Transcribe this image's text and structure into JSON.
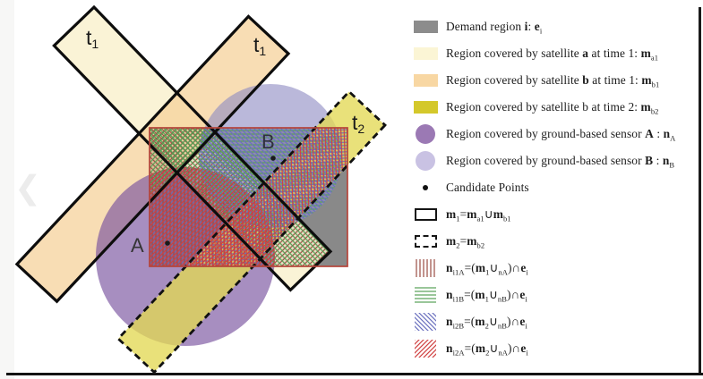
{
  "figure": {
    "name": "satellite-and-ground-sensor-coverage-diagram"
  },
  "chrome": {
    "prev_arrow": "❮"
  },
  "diagram": {
    "labels": {
      "band_a_t1": {
        "main": "t",
        "sub": "1"
      },
      "band_b_t1": {
        "main": "t",
        "sub": "1"
      },
      "band_b_t2": {
        "main": "t",
        "sub": "2"
      },
      "sensor_a": "A",
      "sensor_b": "B"
    },
    "colors": {
      "demand_gray": "#898989",
      "satellite_a_cream": "#faf2d0",
      "satellite_b_peach": "#f6d29b",
      "satellite_b2_yellow": "#e3d955",
      "sensor_a_purple": "#7a54a0",
      "sensor_b_lavender": "#8f8cc4",
      "hatch_vertical_red": "#9a4b42",
      "hatch_horizontal_green": "#55a055",
      "hatch_diagonal_blue": "#6a6fbe",
      "hatch_diagonal_red": "#d04040",
      "demand_outline_red": "#b5443a",
      "band_outline_black": "#0d0d0d"
    }
  },
  "legend": {
    "items": [
      {
        "id": "demand-region",
        "swatch": {
          "type": "square",
          "name": "demand-region-swatch",
          "color": "#8c8c8c"
        },
        "label_html": "Demand region <b>i</b>: <b>e</b><sub>i</sub>"
      },
      {
        "id": "satellite-a-time1",
        "swatch": {
          "type": "square",
          "name": "satellite-a-time1-swatch",
          "color": "#fbf5d5"
        },
        "label_html": "Region covered by satellite <b>a</b> at time 1: <b>m</b><sub>a1</sub>"
      },
      {
        "id": "satellite-b-time1",
        "swatch": {
          "type": "square",
          "name": "satellite-b-time1-swatch",
          "color": "#f8d7a3"
        },
        "label_html": "Region covered by satellite <b>b</b> at time 1: <b>m</b><sub>b1</sub>"
      },
      {
        "id": "satellite-b-time2",
        "swatch": {
          "type": "square",
          "name": "satellite-b-time2-swatch",
          "color": "#d4c82b"
        },
        "label_html": "Region covered by satellite b at time 2: <b>m</b><sub>b2</sub>"
      },
      {
        "id": "sensor-a",
        "swatch": {
          "type": "circle",
          "name": "sensor-a-swatch",
          "color": "#9b79b4"
        },
        "label_html": "Region covered by ground-based sensor <b>A</b> : <b>n</b><sub>A</sub>"
      },
      {
        "id": "sensor-b",
        "swatch": {
          "type": "circle",
          "name": "sensor-b-swatch",
          "color": "#c9c2e3"
        },
        "label_html": "Region covered by ground-based sensor <b>B</b> : <b>n</b><sub>B</sub>"
      },
      {
        "id": "candidate-points",
        "swatch": {
          "type": "dot",
          "name": "candidate-point-swatch",
          "color": "#111111"
        },
        "label_html": "Candidate Points"
      },
      {
        "id": "m1-union",
        "swatch": {
          "type": "rect-outline",
          "name": "m1-solid-outline-swatch"
        },
        "label_html": "<b>m</b><sub>1</sub>=<b>m</b><sub>a1</sub>∪<b>m</b><sub>b1</sub>"
      },
      {
        "id": "m2",
        "swatch": {
          "type": "rect-dashed",
          "name": "m2-dashed-outline-swatch"
        },
        "label_html": "<b>m</b><sub>2</sub>=<b>m</b><sub>b2</sub>"
      },
      {
        "id": "n-i1A",
        "swatch": {
          "type": "hatch",
          "name": "ni1a-vertical-hatch-swatch",
          "pattern": "patV"
        },
        "label_html": "<b>n</b><sub>i1A</sub>=(<b>m</b><sub>1</sub>∪<sub>nA</sub>)∩<b>e</b><sub>i</sub>"
      },
      {
        "id": "n-i1B",
        "swatch": {
          "type": "hatch",
          "name": "ni1b-horizontal-hatch-swatch",
          "pattern": "patH"
        },
        "label_html": "<b>n</b><sub>i1B</sub>=(<b>m</b><sub>1</sub>∪<sub>nB</sub>)∩<b>e</b><sub>i</sub>"
      },
      {
        "id": "n-i2B",
        "swatch": {
          "type": "hatch",
          "name": "ni2b-diagonal-blue-hatch-swatch",
          "pattern": "patB"
        },
        "label_html": "<b>n</b><sub>i2B</sub>=(<b>m</b><sub>2</sub>∪<sub>nB</sub>)∩<b>e</b><sub>i</sub>"
      },
      {
        "id": "n-i2A",
        "swatch": {
          "type": "hatch",
          "name": "ni2a-diagonal-red-hatch-swatch",
          "pattern": "patR"
        },
        "label_html": "<b>n</b><sub>i2A</sub>=(<b>m</b><sub>2</sub>∪<sub>nA</sub>)∩<b>e</b><sub>i</sub>"
      }
    ]
  }
}
